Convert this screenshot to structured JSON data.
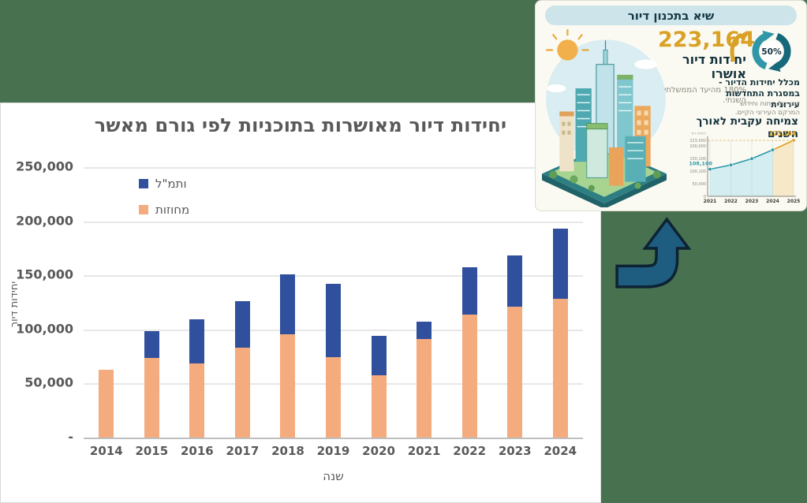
{
  "page": {
    "background_color": "#487150"
  },
  "colors": {
    "background_green": "#487150",
    "panel_white": "#ffffff",
    "bar_blue": "#30509d",
    "bar_orange": "#f4ab7e",
    "text_gray": "#595959",
    "navy": "#14323c",
    "gold": "#d9a126",
    "teal_line": "#2a98a8",
    "arrow_blue": "#1e5d80",
    "pill_blue": "#cde4ea"
  },
  "chart_data": [
    {
      "type": "bar",
      "stacked": true,
      "title": "יחידות דיור מאושרות בתוכניות לפי גורם מאשר",
      "categories": [
        "2014",
        "2015",
        "2016",
        "2017",
        "2018",
        "2019",
        "2020",
        "2021",
        "2022",
        "2023",
        "2024"
      ],
      "series": [
        {
          "name": "מחוזות",
          "color": "#f4ab7e",
          "values": [
            63000,
            73500,
            68500,
            83000,
            95500,
            74000,
            57500,
            91000,
            114000,
            121300,
            128000
          ]
        },
        {
          "name": "ותמ\"ל",
          "color": "#30509d",
          "values": [
            0,
            25000,
            41000,
            43000,
            55500,
            68500,
            36500,
            16000,
            43200,
            47000,
            65500
          ]
        }
      ],
      "totals": [
        63000,
        98500,
        109500,
        126000,
        151000,
        142500,
        94000,
        107000,
        157200,
        168300,
        193500
      ],
      "xlabel": "שנה",
      "ylabel": "יחידות דיור",
      "ylim": [
        0,
        250000
      ],
      "y_tick_labels": [
        "250,000",
        "200,000",
        "150,000",
        "100,000",
        "50,000",
        "-"
      ],
      "grid": "horizontal",
      "legend_position": "upper-left-inside"
    },
    {
      "type": "area",
      "title": "צמיחה עקבית לאורך השנים",
      "x": [
        "2021",
        "2022",
        "2023",
        "2024",
        "2025"
      ],
      "values": [
        108100,
        125000,
        150000,
        185000,
        223164
      ],
      "ylabel": "יחידות דיור",
      "y_tick_labels": [
        "223,000",
        "200,000",
        "150,100",
        "100,100",
        "50,000",
        "0"
      ],
      "point_labels": {
        "first": "108,100",
        "last": "223,164"
      },
      "highlight_from_x": "2024",
      "colors": {
        "line": "#2a98a8",
        "area": "#d3edf1",
        "highlight_line": "#d9a126",
        "highlight_area": "#f6e8c8"
      }
    }
  ],
  "infographic": {
    "title": "שיא בתכנון דיור",
    "headline_number": "223,164",
    "headline_label": "יחידות דיור אושרו",
    "headline_note": "180% מהיעד הממשלתי השנתי.",
    "percent_badge": "50%",
    "percent_caption": "מכלל יחידות הדיור - במסגרת התחדשות עירונית",
    "percent_note": "דגש על פיתוח וחידוש המרקם העירוני הקיים."
  }
}
